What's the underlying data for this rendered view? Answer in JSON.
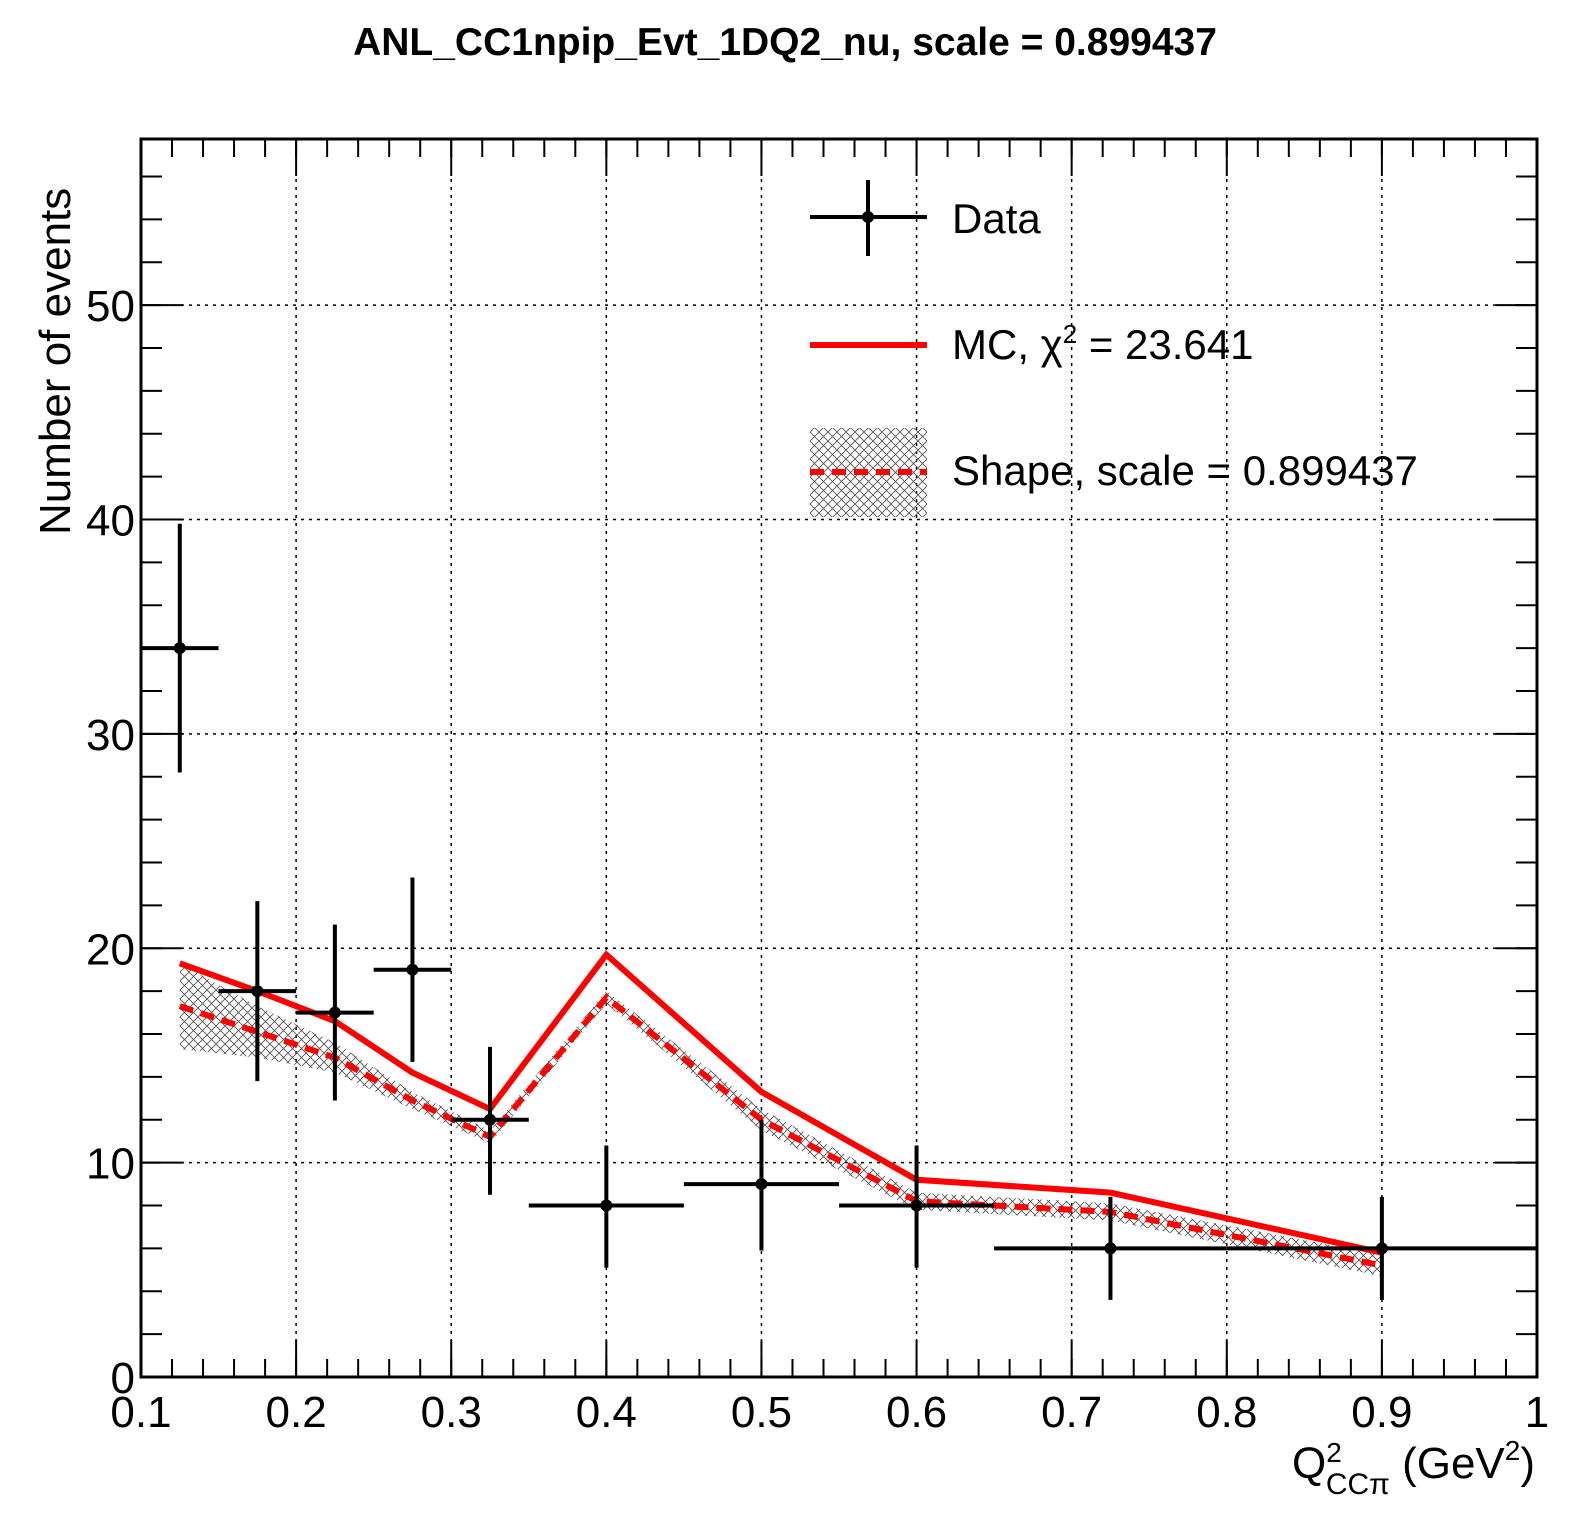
{
  "chart_data": {
    "type": "scatter",
    "title": "ANL_CC1npip_Evt_1DQ2_nu, scale = 0.899437",
    "xlabel": {
      "main": "Q",
      "sup": "2",
      "sub": "CCπ",
      "unit_prefix": " (GeV",
      "unit_sup": "2",
      "unit_suffix": ")"
    },
    "ylabel": "Number of events",
    "xlim": [
      0.1,
      1.0
    ],
    "ylim": [
      0,
      57.75
    ],
    "x_ticks": [
      "0.1",
      "0.2",
      "0.3",
      "0.4",
      "0.5",
      "0.6",
      "0.7",
      "0.8",
      "0.9",
      "1"
    ],
    "y_ticks": [
      "0",
      "10",
      "20",
      "30",
      "40",
      "50"
    ],
    "grid": true,
    "legend_position": "top-right",
    "legend": {
      "data": "Data",
      "mc": {
        "prefix": "MC, ",
        "chi": "χ",
        "sup": "2",
        "suffix": " = 23.641"
      },
      "shape": "Shape, scale = 0.899437"
    },
    "series": [
      {
        "name": "Data",
        "kind": "points_with_errors",
        "color": "#000000",
        "x": [
          0.125,
          0.175,
          0.225,
          0.275,
          0.325,
          0.4,
          0.5,
          0.6,
          0.725,
          0.9
        ],
        "x_low": [
          0.1,
          0.15,
          0.2,
          0.25,
          0.3,
          0.35,
          0.45,
          0.55,
          0.65,
          0.8
        ],
        "x_high": [
          0.15,
          0.2,
          0.25,
          0.3,
          0.35,
          0.45,
          0.55,
          0.65,
          0.8,
          1.0
        ],
        "y": [
          34,
          18,
          17,
          19,
          12,
          8,
          9,
          8,
          6,
          6
        ],
        "y_low": [
          28.2,
          13.8,
          12.9,
          14.7,
          8.5,
          5.1,
          5.9,
          5.1,
          3.6,
          3.6
        ],
        "y_high": [
          39.8,
          22.2,
          21.1,
          23.3,
          15.4,
          10.8,
          12.0,
          10.8,
          8.4,
          8.4
        ]
      },
      {
        "name": "MC, χ2 = 23.641",
        "kind": "line",
        "color": "#ff0000",
        "x": [
          0.125,
          0.175,
          0.225,
          0.275,
          0.325,
          0.4,
          0.5,
          0.6,
          0.725,
          0.9
        ],
        "y": [
          19.3,
          18.0,
          16.6,
          14.2,
          12.5,
          19.7,
          13.3,
          9.2,
          8.6,
          5.8
        ]
      },
      {
        "name": "Shape, scale = 0.899437",
        "kind": "dashed_line_with_band",
        "color": "#ff0000",
        "x": [
          0.125,
          0.175,
          0.225,
          0.275,
          0.325,
          0.4,
          0.5,
          0.6,
          0.725,
          0.9
        ],
        "y": [
          17.3,
          16.1,
          14.9,
          12.9,
          11.2,
          17.7,
          12.0,
          8.2,
          7.7,
          5.2
        ],
        "band_low": [
          15.3,
          14.9,
          14.2,
          12.5,
          10.9,
          17.4,
          11.5,
          7.8,
          7.3,
          4.7
        ],
        "band_high": [
          19.3,
          17.3,
          15.6,
          13.3,
          11.5,
          18.0,
          12.5,
          8.6,
          8.1,
          5.7
        ]
      }
    ]
  }
}
